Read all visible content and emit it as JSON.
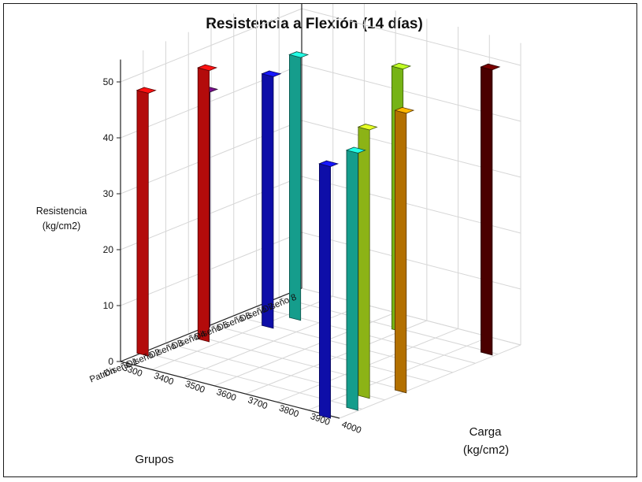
{
  "chart_data": {
    "type": "bar",
    "variant": "3d-bar",
    "title": "Resistencia a Flexión (14 días)",
    "zlabel_lines": [
      "Resistencia",
      "(kg/cm2)"
    ],
    "xlabel": "Grupos",
    "ylabel_lines": [
      "Carga",
      "(kg/cm2)"
    ],
    "groups": [
      "Patrón",
      "Diseño 1",
      "Diseño 2",
      "Diseño 3",
      "Diseño 4",
      "Diseño 5",
      "Diseño 6",
      "Diseño 7",
      "Diseño 8"
    ],
    "carga_ticks": [
      3300,
      3400,
      3500,
      3600,
      3700,
      3800,
      3900,
      4000
    ],
    "zlim": [
      0,
      50
    ],
    "z_ticks": [
      0,
      10,
      20,
      30,
      40,
      50
    ],
    "grid": true,
    "bars": [
      {
        "group": "Diseño 1",
        "carga": 3310,
        "value": 47,
        "color": "#ff1010"
      },
      {
        "group": "Diseño 3",
        "carga": 3360,
        "value": 48.5,
        "color": "#ff1010"
      },
      {
        "group": "Diseño 4",
        "carga": 3290,
        "value": 42,
        "color": "#6a0d7a"
      },
      {
        "group": "Diseño 5",
        "carga": 3420,
        "value": 45,
        "color": "#1414f0"
      },
      {
        "group": "Diseño 6",
        "carga": 3435,
        "value": 47,
        "color": "#1ee0c8"
      },
      {
        "group": "Diseño 7",
        "carga": 3690,
        "value": 47,
        "color": "#a8ff20"
      },
      {
        "group": "Patrón",
        "carga": 3965,
        "value": 45,
        "color": "#1414f0"
      },
      {
        "group": "Diseño 1",
        "carga": 3980,
        "value": 46,
        "color": "#1ee0c8"
      },
      {
        "group": "Diseño 2",
        "carga": 3945,
        "value": 48,
        "color": "#c8ff20"
      },
      {
        "group": "Diseño 3",
        "carga": 3990,
        "value": 50,
        "color": "#ffa000"
      },
      {
        "group": "Diseño 7",
        "carga": 3975,
        "value": 51,
        "color": "#6a0000"
      }
    ]
  }
}
